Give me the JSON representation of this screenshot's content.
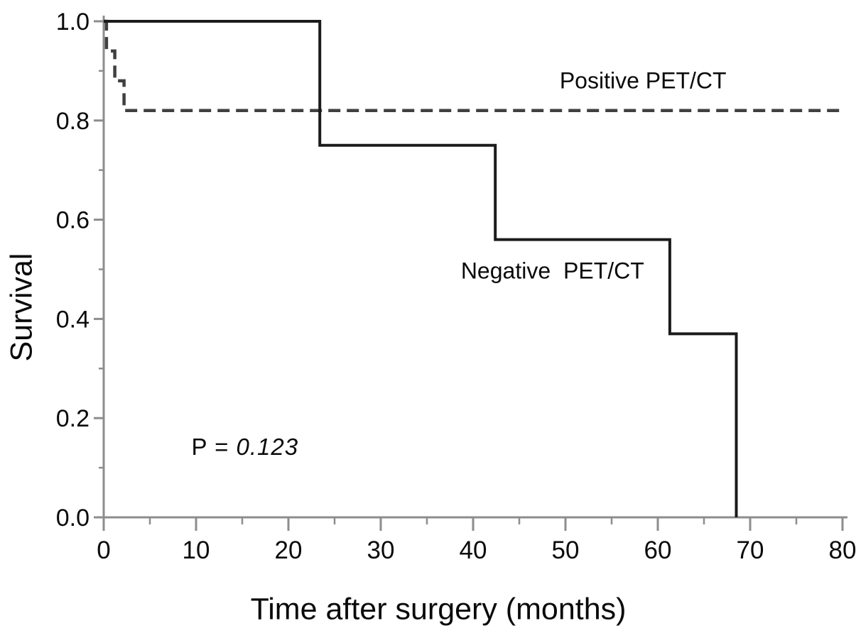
{
  "figure": {
    "background": "#ffffff",
    "kind": "Kaplan-Meier survival plot"
  },
  "chart_data": {
    "type": "line",
    "variant": "kaplan-meier-step",
    "title": "",
    "xlabel": "Time after surgery (months)",
    "ylabel": "Survival",
    "xlim": [
      0,
      80
    ],
    "ylim": [
      0.0,
      1.0
    ],
    "grid": false,
    "legend_position": "inline-annotations",
    "axis_color": "#8d8d8d",
    "x_ticks": [
      0,
      10,
      20,
      30,
      40,
      50,
      60,
      70,
      80
    ],
    "x_minor_ticks": [
      5,
      15,
      25,
      35,
      45,
      55,
      65,
      75
    ],
    "y_ticks": [
      0.0,
      0.2,
      0.4,
      0.6,
      0.8,
      1.0
    ],
    "y_tick_labels": [
      "0.0",
      "0.2",
      "0.4",
      "0.6",
      "0.8",
      "1.0"
    ],
    "y_minor_ticks": [
      0.1,
      0.3,
      0.5,
      0.7,
      0.9
    ],
    "series": [
      {
        "name": "Positive PET/CT",
        "line_style": "dashed",
        "color": "#404040",
        "points": [
          [
            0,
            1.0
          ],
          [
            0.3,
            1.0
          ],
          [
            0.3,
            0.94
          ],
          [
            1.2,
            0.94
          ],
          [
            1.2,
            0.88
          ],
          [
            2.2,
            0.88
          ],
          [
            2.2,
            0.82
          ],
          [
            80.3,
            0.82
          ]
        ]
      },
      {
        "name": "Negative PET/CT",
        "line_style": "solid",
        "color": "#1b1b1b",
        "points": [
          [
            0,
            1.0
          ],
          [
            23.4,
            1.0
          ],
          [
            23.4,
            0.75
          ],
          [
            42.4,
            0.75
          ],
          [
            42.4,
            0.56
          ],
          [
            61.3,
            0.56
          ],
          [
            61.3,
            0.37
          ],
          [
            68.5,
            0.37
          ],
          [
            68.5,
            0.0
          ]
        ]
      }
    ],
    "annotations": [
      {
        "id": "positive-label",
        "text": "Positive PET/CT",
        "x_months": 58.4,
        "y_survival": 0.88,
        "anchor": "middle"
      },
      {
        "id": "negative-label",
        "text": "Negative PET/CT",
        "x_months": 48.6,
        "y_survival": 0.497,
        "anchor": "middle"
      },
      {
        "id": "p-value",
        "text": "P = 0.123",
        "x_months": 9.5,
        "y_survival": 0.142,
        "anchor": "start"
      }
    ],
    "p_value": {
      "prefix": "P = ",
      "value": "0.123"
    }
  }
}
